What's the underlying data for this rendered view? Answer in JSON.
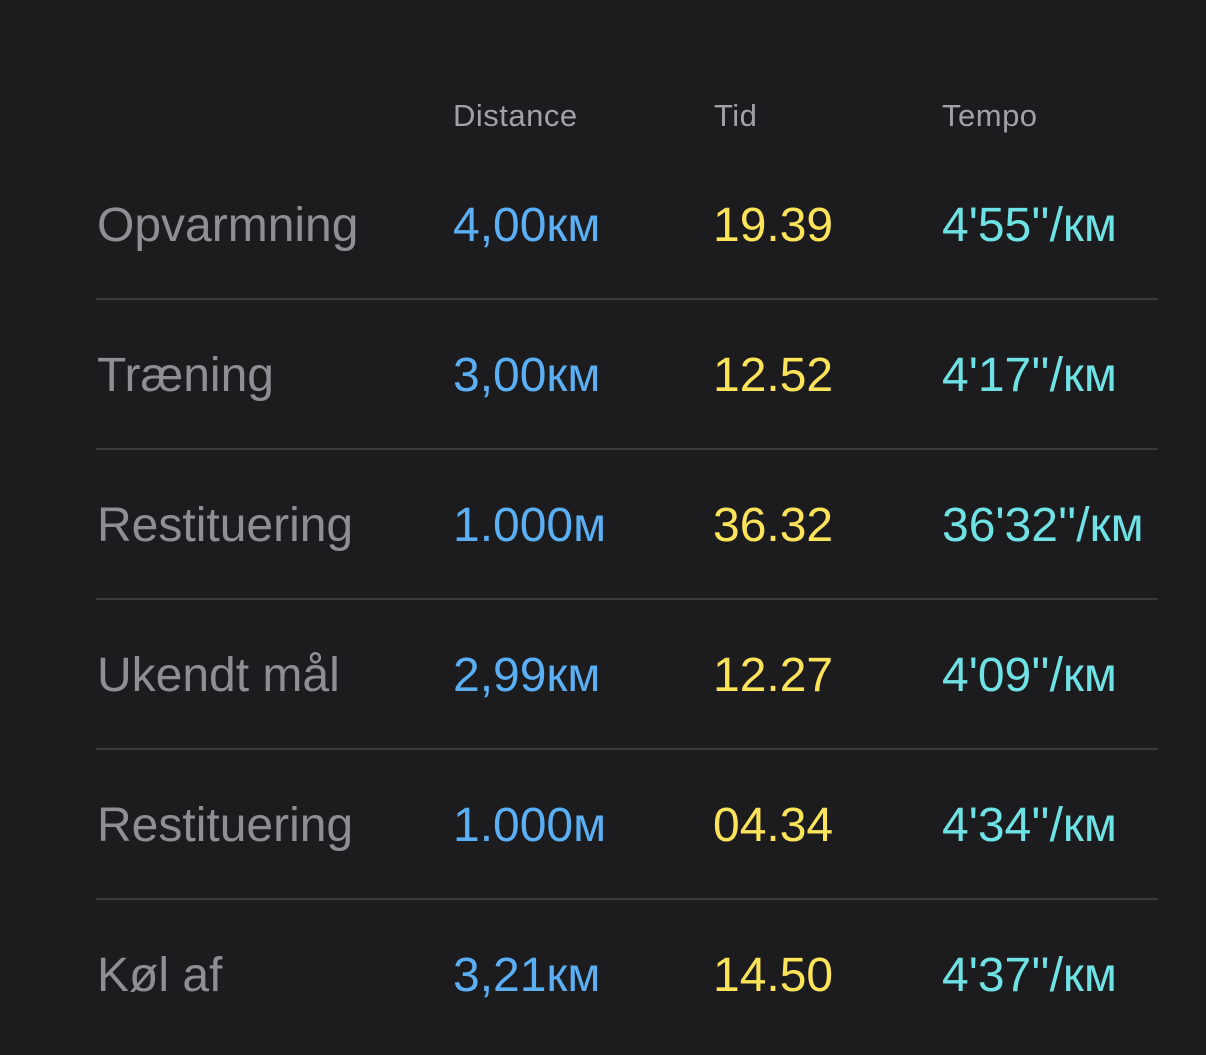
{
  "header": {
    "distance": "Distance",
    "tid": "Tid",
    "tempo": "Tempo"
  },
  "colors": {
    "background": "#1c1c1e",
    "label": "#8e8e93",
    "distance": "#5aaff5",
    "tid": "#ffe45a",
    "tempo": "#6fe2e6",
    "divider": "#3a3a3c"
  },
  "rows": [
    {
      "label": "Opvarmning",
      "distance": "4,00км",
      "tid": "19.39",
      "tempo": "4'55''/км"
    },
    {
      "label": "Træning",
      "distance": "3,00км",
      "tid": "12.52",
      "tempo": "4'17''/км"
    },
    {
      "label": "Restituering",
      "distance": "1.000м",
      "tid": "36.32",
      "tempo": "36'32''/км"
    },
    {
      "label": "Ukendt mål",
      "distance": "2,99км",
      "tid": "12.27",
      "tempo": "4'09''/км"
    },
    {
      "label": "Restituering",
      "distance": "1.000м",
      "tid": "04.34",
      "tempo": "4'34''/км"
    },
    {
      "label": "Køl af",
      "distance": "3,21км",
      "tid": "14.50",
      "tempo": "4'37''/км"
    }
  ]
}
